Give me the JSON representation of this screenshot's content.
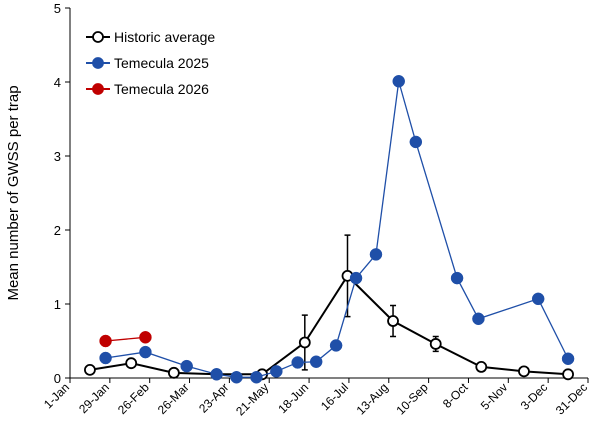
{
  "chart_data": {
    "type": "line",
    "ylabel": "Mean number of GWSS per trap",
    "xlim": [
      1,
      365
    ],
    "ylim": [
      0,
      5
    ],
    "xticks": [
      {
        "value": 1,
        "label": "1-Jan"
      },
      {
        "value": 29,
        "label": "29-Jan"
      },
      {
        "value": 57,
        "label": "26-Feb"
      },
      {
        "value": 85,
        "label": "26-Mar"
      },
      {
        "value": 113,
        "label": "23-Apr"
      },
      {
        "value": 141,
        "label": "21-May"
      },
      {
        "value": 169,
        "label": "18-Jun"
      },
      {
        "value": 197,
        "label": "16-Jul"
      },
      {
        "value": 225,
        "label": "13-Aug"
      },
      {
        "value": 253,
        "label": "10-Sep"
      },
      {
        "value": 281,
        "label": "8-Oct"
      },
      {
        "value": 309,
        "label": "5-Nov"
      },
      {
        "value": 337,
        "label": "3-Dec"
      },
      {
        "value": 365,
        "label": "31-Dec"
      }
    ],
    "yticks": [
      0,
      1,
      2,
      3,
      4,
      5
    ],
    "grid": false,
    "legend": "upper left",
    "series": [
      {
        "name": "Historic average",
        "color": "#000000",
        "marker": "open",
        "x": [
          15,
          44,
          74,
          104,
          136,
          166,
          196,
          228,
          258,
          290,
          320,
          351
        ],
        "values": [
          0.11,
          0.2,
          0.07,
          0.05,
          0.05,
          0.48,
          1.38,
          0.77,
          0.46,
          0.15,
          0.09,
          0.05
        ],
        "errors": [
          null,
          0.05,
          null,
          null,
          null,
          0.37,
          0.55,
          0.21,
          0.1,
          null,
          null,
          null
        ]
      },
      {
        "name": "Temecula 2025",
        "color": "#1f4fa8",
        "marker": "filled",
        "x": [
          26,
          54,
          83,
          104,
          118,
          132,
          146,
          161,
          174,
          188,
          202,
          216,
          232,
          244,
          273,
          288,
          330,
          351
        ],
        "values": [
          0.27,
          0.35,
          0.16,
          0.05,
          0.01,
          0.01,
          0.09,
          0.21,
          0.22,
          0.44,
          1.35,
          1.67,
          4.01,
          3.19,
          1.35,
          0.8,
          1.07,
          0.26
        ]
      },
      {
        "name": "Temecula 2026",
        "color": "#c00000",
        "marker": "filled",
        "x": [
          26,
          54
        ],
        "values": [
          0.5,
          0.55
        ]
      }
    ]
  }
}
